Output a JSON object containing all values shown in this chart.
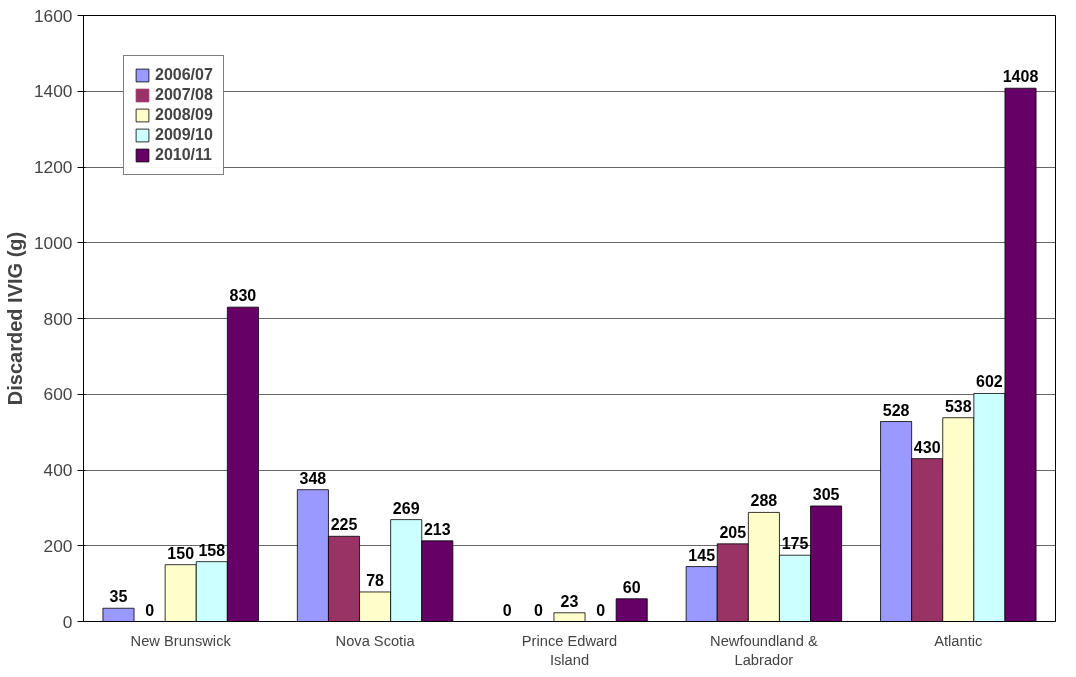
{
  "chart_data": {
    "type": "bar",
    "ylabel": "Discarded IVIG (g)",
    "categories": [
      "New Brunswick",
      "Nova Scotia",
      "Prince Edward Island",
      "Newfoundland & Labrador",
      "Atlantic"
    ],
    "series": [
      {
        "name": "2006/07",
        "color": "#9999ff",
        "values": [
          35,
          348,
          0,
          145,
          528
        ]
      },
      {
        "name": "2007/08",
        "color": "#993366",
        "values": [
          0,
          225,
          0,
          205,
          430
        ]
      },
      {
        "name": "2008/09",
        "color": "#ffffcc",
        "values": [
          150,
          78,
          23,
          288,
          538
        ]
      },
      {
        "name": "2009/10",
        "color": "#ccffff",
        "values": [
          158,
          269,
          0,
          175,
          602
        ]
      },
      {
        "name": "2010/11",
        "color": "#660066",
        "values": [
          830,
          213,
          60,
          305,
          1408
        ]
      }
    ],
    "ylim": [
      0,
      1600
    ],
    "yticks": [
      0,
      200,
      400,
      600,
      800,
      1000,
      1200,
      1400,
      1600
    ],
    "grid": "y",
    "legend": "top left",
    "data_labels": true
  }
}
